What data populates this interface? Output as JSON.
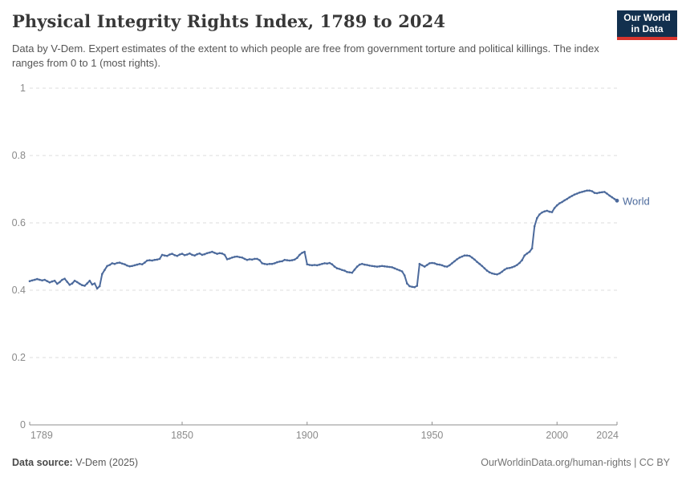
{
  "header": {
    "title": "Physical Integrity Rights Index, 1789 to 2024",
    "subtitle": "Data by V-Dem. Expert estimates of the extent to which people are free from government torture and political killings. The index ranges from 0 to 1 (most rights).",
    "logo": {
      "line1": "Our World",
      "line2": "in Data",
      "bg_color": "#12304e",
      "strip_color": "#d8352e"
    }
  },
  "footer": {
    "source_label": "Data source:",
    "source_value": " V-Dem (2025)",
    "attribution": "OurWorldinData.org/human-rights | CC BY"
  },
  "colors": {
    "title": "#383838",
    "subtitle": "#555555",
    "axis": "#8f8f8f",
    "tick_label": "#8a8a8a",
    "gridline": "#dcdcdc",
    "series_blue": "#4c6a9c"
  },
  "chart_data": {
    "type": "line",
    "title": "Physical Integrity Rights Index, 1789 to 2024",
    "xlabel": "",
    "ylabel": "",
    "xlim": [
      1789,
      2024
    ],
    "ylim": [
      0,
      1
    ],
    "x_ticks": [
      1789,
      1850,
      1900,
      1950,
      2000,
      2024
    ],
    "y_ticks": [
      0,
      0.2,
      0.4,
      0.6,
      0.8,
      1
    ],
    "grid": "horizontal-dashed",
    "legend_position": "end-of-line-label",
    "series": [
      {
        "name": "World",
        "color": "#4c6a9c",
        "points": [
          [
            1789,
            0.427
          ],
          [
            1790,
            0.429
          ],
          [
            1791,
            0.431
          ],
          [
            1792,
            0.433
          ],
          [
            1793,
            0.431
          ],
          [
            1794,
            0.429
          ],
          [
            1795,
            0.431
          ],
          [
            1796,
            0.427
          ],
          [
            1797,
            0.423
          ],
          [
            1798,
            0.426
          ],
          [
            1799,
            0.428
          ],
          [
            1800,
            0.419
          ],
          [
            1801,
            0.424
          ],
          [
            1802,
            0.431
          ],
          [
            1803,
            0.434
          ],
          [
            1804,
            0.425
          ],
          [
            1805,
            0.416
          ],
          [
            1806,
            0.42
          ],
          [
            1807,
            0.428
          ],
          [
            1808,
            0.424
          ],
          [
            1809,
            0.419
          ],
          [
            1810,
            0.415
          ],
          [
            1811,
            0.413
          ],
          [
            1812,
            0.42
          ],
          [
            1813,
            0.428
          ],
          [
            1814,
            0.417
          ],
          [
            1815,
            0.42
          ],
          [
            1816,
            0.405
          ],
          [
            1817,
            0.412
          ],
          [
            1818,
            0.448
          ],
          [
            1819,
            0.46
          ],
          [
            1820,
            0.472
          ],
          [
            1821,
            0.475
          ],
          [
            1822,
            0.48
          ],
          [
            1823,
            0.478
          ],
          [
            1824,
            0.481
          ],
          [
            1825,
            0.482
          ],
          [
            1826,
            0.479
          ],
          [
            1827,
            0.477
          ],
          [
            1828,
            0.473
          ],
          [
            1829,
            0.471
          ],
          [
            1830,
            0.472
          ],
          [
            1831,
            0.474
          ],
          [
            1832,
            0.476
          ],
          [
            1833,
            0.478
          ],
          [
            1834,
            0.477
          ],
          [
            1835,
            0.482
          ],
          [
            1836,
            0.488
          ],
          [
            1837,
            0.489
          ],
          [
            1838,
            0.488
          ],
          [
            1839,
            0.49
          ],
          [
            1840,
            0.491
          ],
          [
            1841,
            0.493
          ],
          [
            1842,
            0.505
          ],
          [
            1843,
            0.503
          ],
          [
            1844,
            0.502
          ],
          [
            1845,
            0.506
          ],
          [
            1846,
            0.508
          ],
          [
            1847,
            0.504
          ],
          [
            1848,
            0.502
          ],
          [
            1849,
            0.506
          ],
          [
            1850,
            0.508
          ],
          [
            1851,
            0.504
          ],
          [
            1852,
            0.506
          ],
          [
            1853,
            0.509
          ],
          [
            1854,
            0.505
          ],
          [
            1855,
            0.503
          ],
          [
            1856,
            0.507
          ],
          [
            1857,
            0.509
          ],
          [
            1858,
            0.505
          ],
          [
            1859,
            0.507
          ],
          [
            1860,
            0.51
          ],
          [
            1861,
            0.512
          ],
          [
            1862,
            0.514
          ],
          [
            1863,
            0.511
          ],
          [
            1864,
            0.508
          ],
          [
            1865,
            0.51
          ],
          [
            1866,
            0.509
          ],
          [
            1867,
            0.505
          ],
          [
            1868,
            0.492
          ],
          [
            1869,
            0.494
          ],
          [
            1870,
            0.497
          ],
          [
            1871,
            0.499
          ],
          [
            1872,
            0.5
          ],
          [
            1873,
            0.498
          ],
          [
            1874,
            0.497
          ],
          [
            1875,
            0.493
          ],
          [
            1876,
            0.49
          ],
          [
            1877,
            0.492
          ],
          [
            1878,
            0.491
          ],
          [
            1879,
            0.493
          ],
          [
            1880,
            0.493
          ],
          [
            1881,
            0.489
          ],
          [
            1882,
            0.48
          ],
          [
            1883,
            0.478
          ],
          [
            1884,
            0.477
          ],
          [
            1885,
            0.478
          ],
          [
            1886,
            0.478
          ],
          [
            1887,
            0.48
          ],
          [
            1888,
            0.483
          ],
          [
            1889,
            0.485
          ],
          [
            1890,
            0.486
          ],
          [
            1891,
            0.49
          ],
          [
            1892,
            0.489
          ],
          [
            1893,
            0.488
          ],
          [
            1894,
            0.489
          ],
          [
            1895,
            0.491
          ],
          [
            1896,
            0.496
          ],
          [
            1897,
            0.505
          ],
          [
            1898,
            0.511
          ],
          [
            1899,
            0.514
          ],
          [
            1900,
            0.477
          ],
          [
            1901,
            0.475
          ],
          [
            1902,
            0.474
          ],
          [
            1903,
            0.475
          ],
          [
            1904,
            0.474
          ],
          [
            1905,
            0.476
          ],
          [
            1906,
            0.478
          ],
          [
            1907,
            0.48
          ],
          [
            1908,
            0.479
          ],
          [
            1909,
            0.481
          ],
          [
            1910,
            0.477
          ],
          [
            1911,
            0.47
          ],
          [
            1912,
            0.465
          ],
          [
            1913,
            0.463
          ],
          [
            1914,
            0.46
          ],
          [
            1915,
            0.458
          ],
          [
            1916,
            0.454
          ],
          [
            1917,
            0.453
          ],
          [
            1918,
            0.452
          ],
          [
            1919,
            0.461
          ],
          [
            1920,
            0.47
          ],
          [
            1921,
            0.476
          ],
          [
            1922,
            0.478
          ],
          [
            1923,
            0.476
          ],
          [
            1924,
            0.475
          ],
          [
            1925,
            0.473
          ],
          [
            1926,
            0.472
          ],
          [
            1927,
            0.471
          ],
          [
            1928,
            0.47
          ],
          [
            1929,
            0.471
          ],
          [
            1930,
            0.472
          ],
          [
            1931,
            0.471
          ],
          [
            1932,
            0.47
          ],
          [
            1933,
            0.469
          ],
          [
            1934,
            0.468
          ],
          [
            1935,
            0.465
          ],
          [
            1936,
            0.462
          ],
          [
            1937,
            0.459
          ],
          [
            1938,
            0.456
          ],
          [
            1939,
            0.444
          ],
          [
            1940,
            0.42
          ],
          [
            1941,
            0.412
          ],
          [
            1942,
            0.41
          ],
          [
            1943,
            0.409
          ],
          [
            1944,
            0.413
          ],
          [
            1945,
            0.478
          ],
          [
            1946,
            0.474
          ],
          [
            1947,
            0.47
          ],
          [
            1948,
            0.475
          ],
          [
            1949,
            0.48
          ],
          [
            1950,
            0.481
          ],
          [
            1951,
            0.48
          ],
          [
            1952,
            0.477
          ],
          [
            1953,
            0.476
          ],
          [
            1954,
            0.474
          ],
          [
            1955,
            0.471
          ],
          [
            1956,
            0.47
          ],
          [
            1957,
            0.474
          ],
          [
            1958,
            0.48
          ],
          [
            1959,
            0.486
          ],
          [
            1960,
            0.492
          ],
          [
            1961,
            0.497
          ],
          [
            1962,
            0.5
          ],
          [
            1963,
            0.503
          ],
          [
            1964,
            0.503
          ],
          [
            1965,
            0.502
          ],
          [
            1966,
            0.497
          ],
          [
            1967,
            0.491
          ],
          [
            1968,
            0.484
          ],
          [
            1969,
            0.478
          ],
          [
            1970,
            0.472
          ],
          [
            1971,
            0.465
          ],
          [
            1972,
            0.458
          ],
          [
            1973,
            0.453
          ],
          [
            1974,
            0.45
          ],
          [
            1975,
            0.448
          ],
          [
            1976,
            0.447
          ],
          [
            1977,
            0.45
          ],
          [
            1978,
            0.455
          ],
          [
            1979,
            0.461
          ],
          [
            1980,
            0.465
          ],
          [
            1981,
            0.466
          ],
          [
            1982,
            0.468
          ],
          [
            1983,
            0.471
          ],
          [
            1984,
            0.475
          ],
          [
            1985,
            0.481
          ],
          [
            1986,
            0.489
          ],
          [
            1987,
            0.503
          ],
          [
            1988,
            0.509
          ],
          [
            1989,
            0.514
          ],
          [
            1990,
            0.524
          ],
          [
            1991,
            0.59
          ],
          [
            1992,
            0.614
          ],
          [
            1993,
            0.625
          ],
          [
            1994,
            0.631
          ],
          [
            1995,
            0.634
          ],
          [
            1996,
            0.636
          ],
          [
            1997,
            0.633
          ],
          [
            1998,
            0.632
          ],
          [
            1999,
            0.644
          ],
          [
            2000,
            0.652
          ],
          [
            2001,
            0.658
          ],
          [
            2002,
            0.662
          ],
          [
            2003,
            0.667
          ],
          [
            2004,
            0.671
          ],
          [
            2005,
            0.676
          ],
          [
            2006,
            0.68
          ],
          [
            2007,
            0.684
          ],
          [
            2008,
            0.687
          ],
          [
            2009,
            0.69
          ],
          [
            2010,
            0.692
          ],
          [
            2011,
            0.694
          ],
          [
            2012,
            0.696
          ],
          [
            2013,
            0.696
          ],
          [
            2014,
            0.694
          ],
          [
            2015,
            0.689
          ],
          [
            2016,
            0.688
          ],
          [
            2017,
            0.69
          ],
          [
            2018,
            0.691
          ],
          [
            2019,
            0.692
          ],
          [
            2020,
            0.687
          ],
          [
            2021,
            0.681
          ],
          [
            2022,
            0.676
          ],
          [
            2023,
            0.671
          ],
          [
            2024,
            0.666
          ]
        ]
      }
    ]
  }
}
